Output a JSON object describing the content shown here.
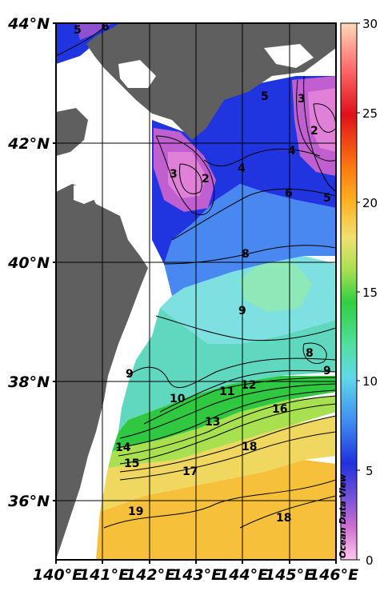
{
  "map": {
    "lon_labels": [
      "140°E",
      "141°E",
      "142°E",
      "143°E",
      "144°E",
      "145°E",
      "146°E"
    ],
    "lat_labels": [
      "44°N",
      "42°N",
      "40°N",
      "38°N",
      "36°N"
    ],
    "watermark": "Ocean Data View",
    "land_color": "#5f5f5f",
    "grid_color": "#000000"
  },
  "colorbar": {
    "ticks": [
      "30",
      "25",
      "20",
      "15",
      "10",
      "5",
      "0"
    ],
    "stops": [
      "#ffd9b8",
      "#ff4020",
      "#e0101a",
      "#ff7a10",
      "#ffc030",
      "#f0e070",
      "#a8e050",
      "#30d040",
      "#50e0a0",
      "#60d8e8",
      "#4090f0",
      "#2030e0",
      "#9050d0",
      "#e080d8",
      "#ffc8f0"
    ]
  },
  "contours": {
    "labels": [
      "5",
      "6",
      "3",
      "5",
      "4",
      "2",
      "3",
      "2",
      "4",
      "6",
      "5",
      "8",
      "9",
      "8",
      "9",
      "9",
      "10",
      "11",
      "12",
      "13",
      "16",
      "14",
      "15",
      "17",
      "18",
      "19",
      "18"
    ]
  }
}
